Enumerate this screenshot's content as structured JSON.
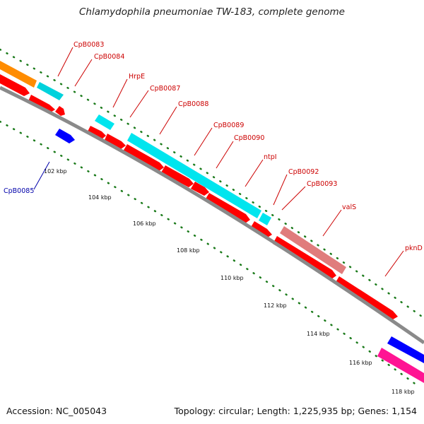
{
  "title": "Chlamydophila pneumoniae TW-183, complete genome",
  "footer": {
    "accession": "Accession: NC_005043",
    "topology": "Topology: circular; Length: 1,225,935 bp; Genes: 1,154"
  },
  "colors": {
    "backbone": "#8a8a8a",
    "forward_cds": "#ff0000",
    "rna": "#00e5ee",
    "pink": "#e08080",
    "blue": "#0000ff",
    "magenta": "#ff1493",
    "orange": "#ff8c00",
    "tick": "#1a7a1a",
    "label_red": "#cc0000",
    "label_blue": "#0000aa"
  },
  "kbp_ticks": [
    "102 kbp",
    "104 kbp",
    "106 kbp",
    "108 kbp",
    "110 kbp",
    "112 kbp",
    "114 kbp",
    "116 kbp",
    "118 kbp"
  ],
  "gene_labels": [
    "CpB0083",
    "CpB0084",
    "HrpE",
    "CpB0087",
    "CpB0088",
    "CpB0089",
    "CpB0090",
    "ntpI",
    "CpB0092",
    "CpB0093",
    "valS",
    "pknD",
    "CpB0085"
  ]
}
